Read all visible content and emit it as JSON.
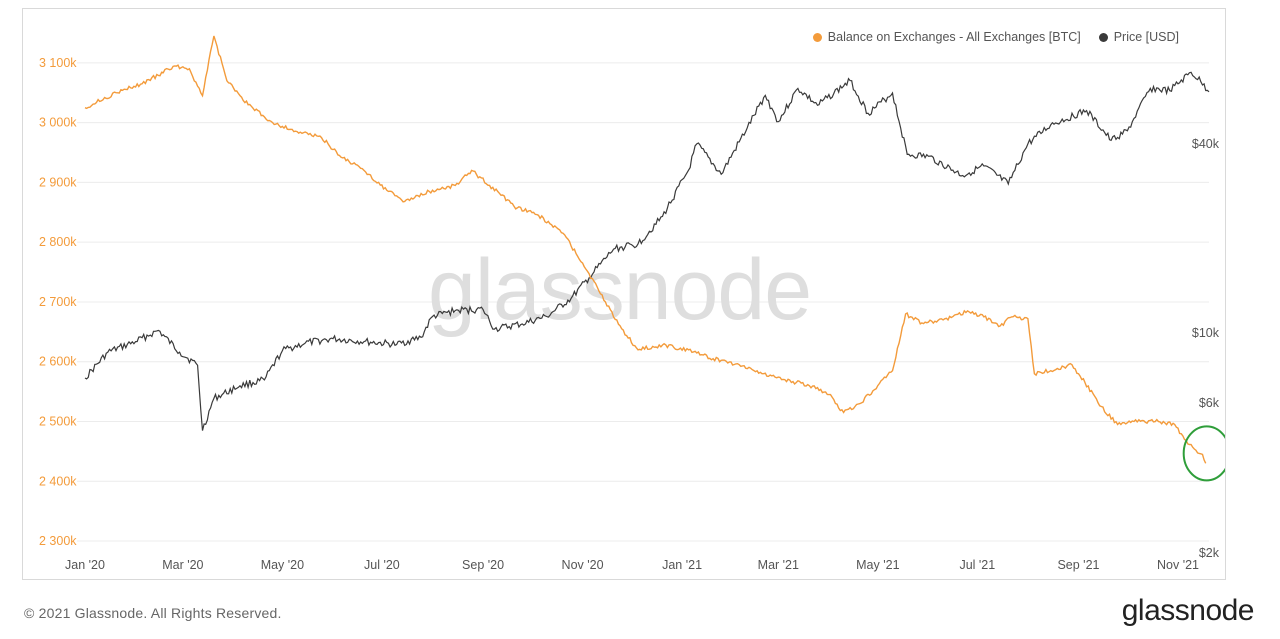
{
  "legend": {
    "balance_label": "Balance on Exchanges - All Exchanges [BTC]",
    "price_label": "Price [USD]"
  },
  "colors": {
    "balance": "#f39b3b",
    "price": "#3a3a3a",
    "annotation": "#2f9e3a",
    "grid": "#ececec"
  },
  "watermark": "glassnode",
  "footer": {
    "copyright": "© 2021 Glassnode. All Rights Reserved.",
    "logo": "glassnode"
  },
  "chart_data": {
    "type": "line",
    "x_ticks": [
      "Jan '20",
      "Mar '20",
      "May '20",
      "Jul '20",
      "Sep '20",
      "Nov '20",
      "Jan '21",
      "Mar '21",
      "May '21",
      "Jul '21",
      "Sep '21",
      "Nov '21"
    ],
    "x_range": [
      "2020-01-01",
      "2021-11-20"
    ],
    "y_left": {
      "ticks": [
        "3 100k",
        "3 000k",
        "2 900k",
        "2 800k",
        "2 700k",
        "2 600k",
        "2 500k",
        "2 400k",
        "2 300k"
      ],
      "range": [
        2290000,
        3160000
      ]
    },
    "y_right": {
      "ticks": [
        "$40k",
        "$10k",
        "$6k",
        "$2k"
      ],
      "tick_values": [
        40000,
        10000,
        6000,
        2000
      ],
      "scale": "log"
    },
    "grid": true,
    "legend_position": "top-right",
    "annotation": {
      "shape": "circle",
      "date": "2021-11-10",
      "value": 2450000
    },
    "series": [
      {
        "name": "Balance on Exchanges - All Exchanges [BTC]",
        "axis": "left",
        "points": [
          [
            "2020-01-01",
            3025000
          ],
          [
            "2020-01-20",
            3050000
          ],
          [
            "2020-02-05",
            3065000
          ],
          [
            "2020-02-25",
            3095000
          ],
          [
            "2020-03-05",
            3090000
          ],
          [
            "2020-03-13",
            3045000
          ],
          [
            "2020-03-20",
            3145000
          ],
          [
            "2020-03-28",
            3070000
          ],
          [
            "2020-04-10",
            3030000
          ],
          [
            "2020-04-25",
            3000000
          ],
          [
            "2020-05-10",
            2985000
          ],
          [
            "2020-05-25",
            2975000
          ],
          [
            "2020-06-05",
            2945000
          ],
          [
            "2020-06-20",
            2920000
          ],
          [
            "2020-07-05",
            2885000
          ],
          [
            "2020-07-15",
            2868000
          ],
          [
            "2020-07-30",
            2885000
          ],
          [
            "2020-08-15",
            2895000
          ],
          [
            "2020-08-25",
            2920000
          ],
          [
            "2020-09-05",
            2895000
          ],
          [
            "2020-09-20",
            2860000
          ],
          [
            "2020-10-05",
            2845000
          ],
          [
            "2020-10-20",
            2815000
          ],
          [
            "2020-11-01",
            2765000
          ],
          [
            "2020-11-15",
            2700000
          ],
          [
            "2020-11-25",
            2655000
          ],
          [
            "2020-12-05",
            2620000
          ],
          [
            "2020-12-20",
            2628000
          ],
          [
            "2021-01-05",
            2620000
          ],
          [
            "2021-01-20",
            2605000
          ],
          [
            "2021-02-05",
            2595000
          ],
          [
            "2021-02-20",
            2580000
          ],
          [
            "2021-03-05",
            2570000
          ],
          [
            "2021-03-20",
            2560000
          ],
          [
            "2021-04-01",
            2545000
          ],
          [
            "2021-04-10",
            2515000
          ],
          [
            "2021-04-20",
            2530000
          ],
          [
            "2021-05-01",
            2560000
          ],
          [
            "2021-05-10",
            2585000
          ],
          [
            "2021-05-18",
            2680000
          ],
          [
            "2021-05-28",
            2665000
          ],
          [
            "2021-06-10",
            2670000
          ],
          [
            "2021-06-25",
            2685000
          ],
          [
            "2021-07-05",
            2675000
          ],
          [
            "2021-07-15",
            2660000
          ],
          [
            "2021-07-22",
            2675000
          ],
          [
            "2021-08-01",
            2672000
          ],
          [
            "2021-08-05",
            2580000
          ],
          [
            "2021-08-15",
            2585000
          ],
          [
            "2021-08-28",
            2595000
          ],
          [
            "2021-09-05",
            2565000
          ],
          [
            "2021-09-15",
            2525000
          ],
          [
            "2021-09-25",
            2495000
          ],
          [
            "2021-10-05",
            2500000
          ],
          [
            "2021-10-20",
            2500000
          ],
          [
            "2021-10-30",
            2495000
          ],
          [
            "2021-11-05",
            2470000
          ],
          [
            "2021-11-12",
            2452000
          ],
          [
            "2021-11-16",
            2445000
          ],
          [
            "2021-11-18",
            2430000
          ]
        ]
      },
      {
        "name": "Price [USD]",
        "axis": "right",
        "points": [
          [
            "2020-01-01",
            7200
          ],
          [
            "2020-01-15",
            8700
          ],
          [
            "2020-02-01",
            9400
          ],
          [
            "2020-02-15",
            10200
          ],
          [
            "2020-02-28",
            8700
          ],
          [
            "2020-03-10",
            7900
          ],
          [
            "2020-03-13",
            4900
          ],
          [
            "2020-03-20",
            6200
          ],
          [
            "2020-04-05",
            6800
          ],
          [
            "2020-04-20",
            7100
          ],
          [
            "2020-05-01",
            8800
          ],
          [
            "2020-05-15",
            9300
          ],
          [
            "2020-06-01",
            9600
          ],
          [
            "2020-06-20",
            9400
          ],
          [
            "2020-07-10",
            9200
          ],
          [
            "2020-07-25",
            9700
          ],
          [
            "2020-08-01",
            11300
          ],
          [
            "2020-08-15",
            11800
          ],
          [
            "2020-09-01",
            11900
          ],
          [
            "2020-09-08",
            10300
          ],
          [
            "2020-09-25",
            10700
          ],
          [
            "2020-10-10",
            11300
          ],
          [
            "2020-10-25",
            12900
          ],
          [
            "2020-11-05",
            15000
          ],
          [
            "2020-11-20",
            18500
          ],
          [
            "2020-12-05",
            19200
          ],
          [
            "2020-12-20",
            23500
          ],
          [
            "2021-01-05",
            33000
          ],
          [
            "2021-01-10",
            40000
          ],
          [
            "2021-01-25",
            32000
          ],
          [
            "2021-02-10",
            45000
          ],
          [
            "2021-02-21",
            57000
          ],
          [
            "2021-03-01",
            47000
          ],
          [
            "2021-03-13",
            60000
          ],
          [
            "2021-03-25",
            53000
          ],
          [
            "2021-04-14",
            63500
          ],
          [
            "2021-04-25",
            50000
          ],
          [
            "2021-05-10",
            58000
          ],
          [
            "2021-05-19",
            37000
          ],
          [
            "2021-06-01",
            36500
          ],
          [
            "2021-06-22",
            31700
          ],
          [
            "2021-07-05",
            34000
          ],
          [
            "2021-07-20",
            29800
          ],
          [
            "2021-08-01",
            40000
          ],
          [
            "2021-08-15",
            46000
          ],
          [
            "2021-09-06",
            51000
          ],
          [
            "2021-09-21",
            41000
          ],
          [
            "2021-10-01",
            44000
          ],
          [
            "2021-10-15",
            60000
          ],
          [
            "2021-10-27",
            59000
          ],
          [
            "2021-11-09",
            67500
          ],
          [
            "2021-11-15",
            63000
          ],
          [
            "2021-11-20",
            58500
          ]
        ]
      }
    ]
  }
}
